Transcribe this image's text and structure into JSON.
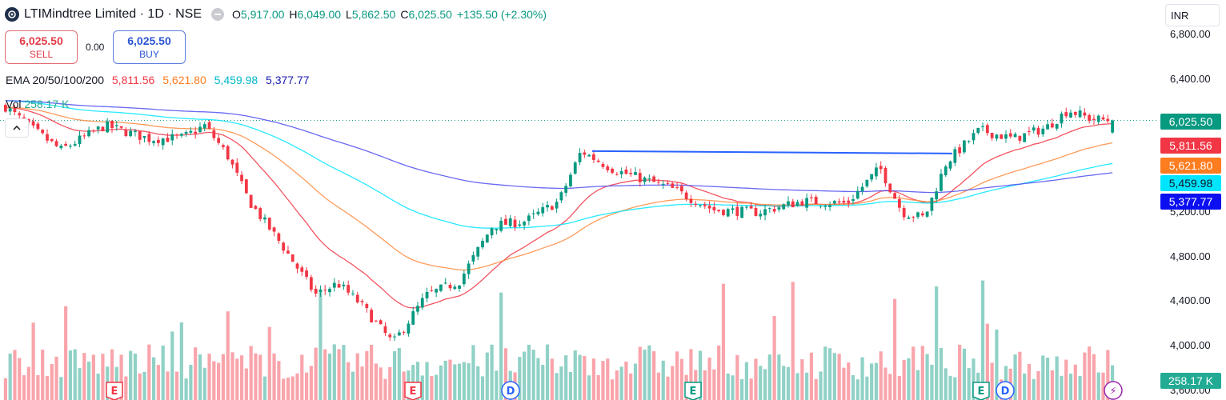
{
  "header": {
    "symbol": "LTIMindtree Limited · 1D · NSE",
    "open_label": "O",
    "open": "5,917.00",
    "high_label": "H",
    "high": "6,049.00",
    "low_label": "L",
    "low": "5,862.50",
    "close_label": "C",
    "close": "6,025.50",
    "change": "+135.50 (+2.30%)"
  },
  "trade": {
    "sell_price": "6,025.50",
    "sell_label": "SELL",
    "spread": "0.00",
    "buy_price": "6,025.50",
    "buy_label": "BUY"
  },
  "indicators": {
    "ema_label": "EMA 20/50/100/200",
    "ema20": "5,811.56",
    "ema50": "5,621.80",
    "ema100": "5,459.98",
    "ema200": "5,377.77",
    "vol_label": "Vol",
    "vol_value": "258.17 K"
  },
  "axis": {
    "currency": "INR",
    "currency_icon": "chevron-down-icon",
    "ticks": [
      "6,800.00",
      "6,400.00",
      "5,200.00",
      "4,800.00",
      "4,400.00",
      "4,000.00",
      "3,600.00"
    ],
    "tick_values": [
      6800,
      6400,
      5200,
      4800,
      4400,
      4000,
      3600
    ],
    "labels": [
      {
        "text": "6,025.50",
        "value": 6025.5,
        "color": "#089981"
      },
      {
        "text": "5,811.56",
        "value": 5811.56,
        "color": "#f23645"
      },
      {
        "text": "5,621.80",
        "value": 5621.8,
        "color": "#ff7c1f"
      },
      {
        "text": "5,459.98",
        "value": 5459.98,
        "color": "#00e5ff"
      },
      {
        "text": "5,377.77",
        "value": 5377.77,
        "color": "#0c10f0"
      },
      {
        "text": "258.17 K",
        "value": null,
        "color": "#22ab94"
      }
    ]
  },
  "colors": {
    "up": "#089981",
    "down": "#f23645",
    "ema20": "#f23645",
    "ema50": "#ff8a3d",
    "ema100": "#00e5ff",
    "ema200": "#4d4ff0",
    "trendline": "#2962ff"
  },
  "events": [
    {
      "letter": "E",
      "type": "earnings"
    },
    {
      "letter": "E",
      "type": "earnings"
    },
    {
      "letter": "D",
      "type": "dividend"
    },
    {
      "letter": "E",
      "type": "earnings"
    },
    {
      "letter": "E",
      "type": "earnings"
    },
    {
      "letter": "D",
      "type": "dividend"
    },
    {
      "letter": "⚡",
      "type": "split"
    }
  ],
  "chart_data": {
    "type": "candlestick",
    "ylim": [
      3550,
      6950
    ],
    "last_close": 6025.5,
    "resistance_level": 5750,
    "trend": [
      {
        "t": 0,
        "p": 6150
      },
      {
        "t": 0.02,
        "p": 5980
      },
      {
        "t": 0.05,
        "p": 5760
      },
      {
        "t": 0.09,
        "p": 5980
      },
      {
        "t": 0.13,
        "p": 5860
      },
      {
        "t": 0.16,
        "p": 5870
      },
      {
        "t": 0.18,
        "p": 5980
      },
      {
        "t": 0.2,
        "p": 5720
      },
      {
        "t": 0.22,
        "p": 5300
      },
      {
        "t": 0.25,
        "p": 4900
      },
      {
        "t": 0.28,
        "p": 4460
      },
      {
        "t": 0.3,
        "p": 4560
      },
      {
        "t": 0.32,
        "p": 4380
      },
      {
        "t": 0.35,
        "p": 4020
      },
      {
        "t": 0.38,
        "p": 4450
      },
      {
        "t": 0.41,
        "p": 4580
      },
      {
        "t": 0.44,
        "p": 5080
      },
      {
        "t": 0.47,
        "p": 5120
      },
      {
        "t": 0.5,
        "p": 5300
      },
      {
        "t": 0.52,
        "p": 5750
      },
      {
        "t": 0.55,
        "p": 5580
      },
      {
        "t": 0.6,
        "p": 5420
      },
      {
        "t": 0.64,
        "p": 5220
      },
      {
        "t": 0.68,
        "p": 5200
      },
      {
        "t": 0.72,
        "p": 5300
      },
      {
        "t": 0.76,
        "p": 5280
      },
      {
        "t": 0.79,
        "p": 5600
      },
      {
        "t": 0.81,
        "p": 5200
      },
      {
        "t": 0.83,
        "p": 5150
      },
      {
        "t": 0.85,
        "p": 5650
      },
      {
        "t": 0.88,
        "p": 5940
      },
      {
        "t": 0.91,
        "p": 5860
      },
      {
        "t": 0.94,
        "p": 5960
      },
      {
        "t": 0.96,
        "p": 6120
      },
      {
        "t": 0.98,
        "p": 6040
      },
      {
        "t": 1,
        "p": 6025.5
      }
    ]
  }
}
